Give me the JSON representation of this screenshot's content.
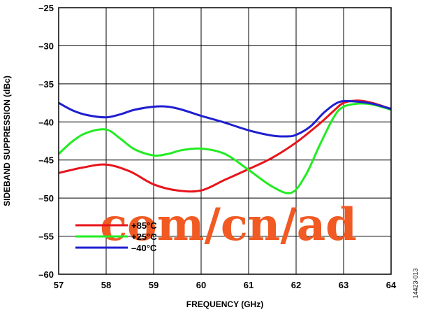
{
  "chart_data": {
    "type": "line",
    "title": "",
    "xlabel": "FREQUENCY (GHz)",
    "ylabel": "SIDEBAND SUPPRESSION (dBc)",
    "xlim": [
      57,
      64
    ],
    "ylim": [
      -60,
      -25
    ],
    "x_ticks": [
      57,
      58,
      59,
      60,
      61,
      62,
      63,
      64
    ],
    "y_ticks": [
      -60,
      -55,
      -50,
      -45,
      -40,
      -35,
      -30,
      -25
    ],
    "x_tick_labels": [
      "57",
      "58",
      "59",
      "60",
      "61",
      "62",
      "63",
      "64"
    ],
    "y_tick_labels": [
      "–60",
      "–55",
      "–50",
      "–45",
      "–40",
      "–35",
      "–30",
      "–25"
    ],
    "grid": true,
    "legend_position": "bottom-left",
    "series": [
      {
        "name": "+85°C",
        "color": "#e8141b",
        "x": [
          57.0,
          57.5,
          58.0,
          58.5,
          59.0,
          59.5,
          60.0,
          60.5,
          61.0,
          61.5,
          62.0,
          62.5,
          62.8,
          63.0,
          63.3,
          63.6,
          64.0
        ],
        "y": [
          -46.7,
          -46.0,
          -45.6,
          -46.5,
          -48.2,
          -49.0,
          -49.0,
          -47.6,
          -46.2,
          -44.7,
          -42.7,
          -40.2,
          -38.5,
          -37.5,
          -37.2,
          -37.5,
          -38.3
        ]
      },
      {
        "name": "+25°C",
        "color": "#22ec22",
        "x": [
          57.0,
          57.3,
          57.6,
          58.0,
          58.3,
          58.6,
          59.0,
          59.3,
          59.6,
          60.0,
          60.5,
          61.0,
          61.5,
          61.9,
          62.2,
          62.5,
          62.8,
          63.0,
          63.3,
          63.6,
          64.0
        ],
        "y": [
          -44.2,
          -42.5,
          -41.4,
          -41.0,
          -42.2,
          -43.6,
          -44.4,
          -44.2,
          -43.7,
          -43.5,
          -44.2,
          -46.3,
          -48.5,
          -49.3,
          -47.0,
          -43.0,
          -39.3,
          -38.0,
          -37.6,
          -37.7,
          -38.4
        ]
      },
      {
        "name": "–40°C",
        "color": "#1f1fd0",
        "x": [
          57.0,
          57.3,
          57.6,
          58.0,
          58.3,
          58.6,
          59.0,
          59.3,
          59.6,
          60.0,
          60.5,
          61.0,
          61.5,
          61.8,
          62.0,
          62.3,
          62.6,
          62.9,
          63.2,
          63.6,
          64.0
        ],
        "y": [
          -37.5,
          -38.5,
          -39.1,
          -39.4,
          -39.0,
          -38.4,
          -38.0,
          -38.0,
          -38.4,
          -39.2,
          -40.1,
          -41.1,
          -41.8,
          -41.9,
          -41.7,
          -40.6,
          -38.7,
          -37.4,
          -37.3,
          -37.6,
          -38.3
        ]
      }
    ]
  },
  "figure_id": "14423-013",
  "watermark_text": "com/cn/ad"
}
